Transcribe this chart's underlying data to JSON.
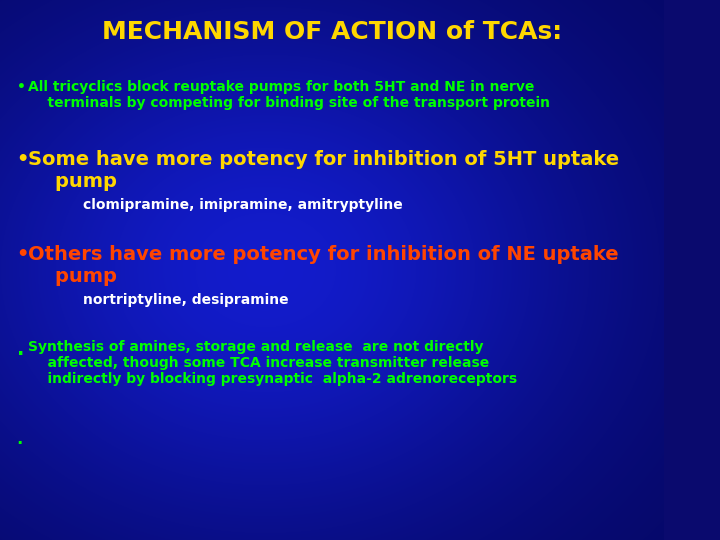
{
  "title": "MECHANISM OF ACTION of TCAs:",
  "title_color": "#FFD700",
  "bg_color": "#0a0a6e",
  "bg_mid_color": "#1a3aaa",
  "bullet1_text_line1": "All tricyclics block reuptake pumps for both 5HT and NE in nerve",
  "bullet1_text_line2": "    terminals by competing for binding site of the transport protein",
  "bullet1_color": "#00FF00",
  "bullet2_text_line1": "Some have more potency for inhibition of 5HT uptake",
  "bullet2_text_line2": "    pump",
  "bullet2_color": "#FFD700",
  "bullet2_sub": "clomipramine, imipramine, amitryptyline",
  "bullet2_sub_color": "#FFFFFF",
  "bullet3_text_line1": "Others have more potency for inhibition of NE uptake",
  "bullet3_text_line2": "    pump",
  "bullet3_color": "#FF4500",
  "bullet3_sub": "nortriptyline, desipramine",
  "bullet3_sub_color": "#FFFFFF",
  "bullet4_text_line1": "Synthesis of amines, storage and release  are not directly",
  "bullet4_text_line2": "    affected, though some TCA increase transmitter release",
  "bullet4_text_line3": "    indirectly by blocking presynaptic  alpha-2 adrenoreceptors",
  "bullet4_color": "#00FF00",
  "font_family": "DejaVu Sans"
}
